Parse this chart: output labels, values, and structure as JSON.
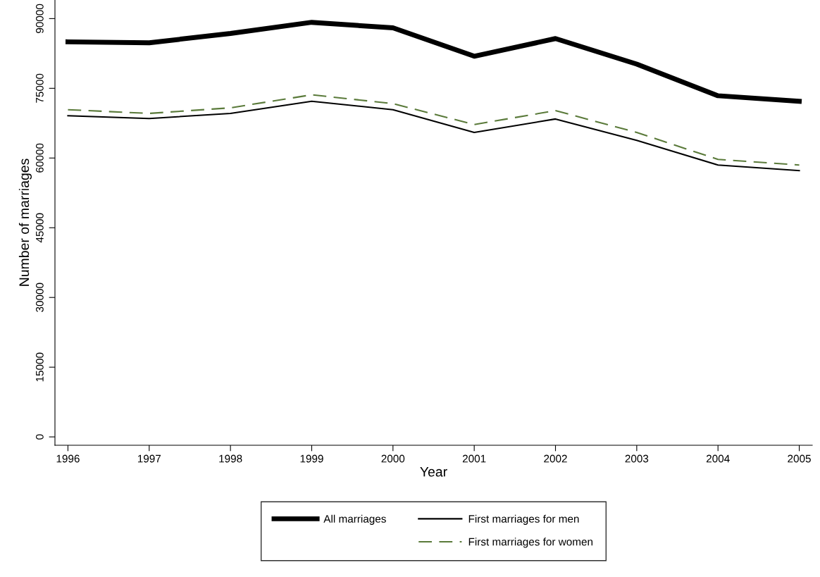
{
  "chart_data": {
    "type": "line",
    "xlabel": "Year",
    "ylabel": "Number of marriages",
    "x": [
      1996,
      1997,
      1998,
      1999,
      2000,
      2001,
      2002,
      2003,
      2004,
      2005
    ],
    "series": [
      {
        "name": "All marriages",
        "color": "#000000",
        "line_style": "solid",
        "values": [
          85000,
          84800,
          86800,
          89200,
          88000,
          81900,
          85700,
          80200,
          73400,
          72200
        ]
      },
      {
        "name": "First marriages for men",
        "color": "#000000",
        "line_style": "solid",
        "values": [
          69100,
          68500,
          69600,
          72200,
          70400,
          65500,
          68400,
          63800,
          58500,
          57300
        ]
      },
      {
        "name": "First marriages for women",
        "color": "#5a7a3a",
        "line_style": "dashed",
        "values": [
          70400,
          69600,
          70800,
          73600,
          71700,
          67200,
          70200,
          65500,
          59700,
          58500
        ]
      }
    ],
    "xlim": [
      1995.84,
      2005.16
    ],
    "ylim": [
      -1800,
      94000
    ],
    "xticks": [
      1996,
      1997,
      1998,
      1999,
      2000,
      2001,
      2002,
      2003,
      2004,
      2005
    ],
    "yticks": [
      0,
      15000,
      30000,
      45000,
      60000,
      75000,
      90000
    ],
    "grid": false,
    "legend": "bottom",
    "marker": "none"
  }
}
